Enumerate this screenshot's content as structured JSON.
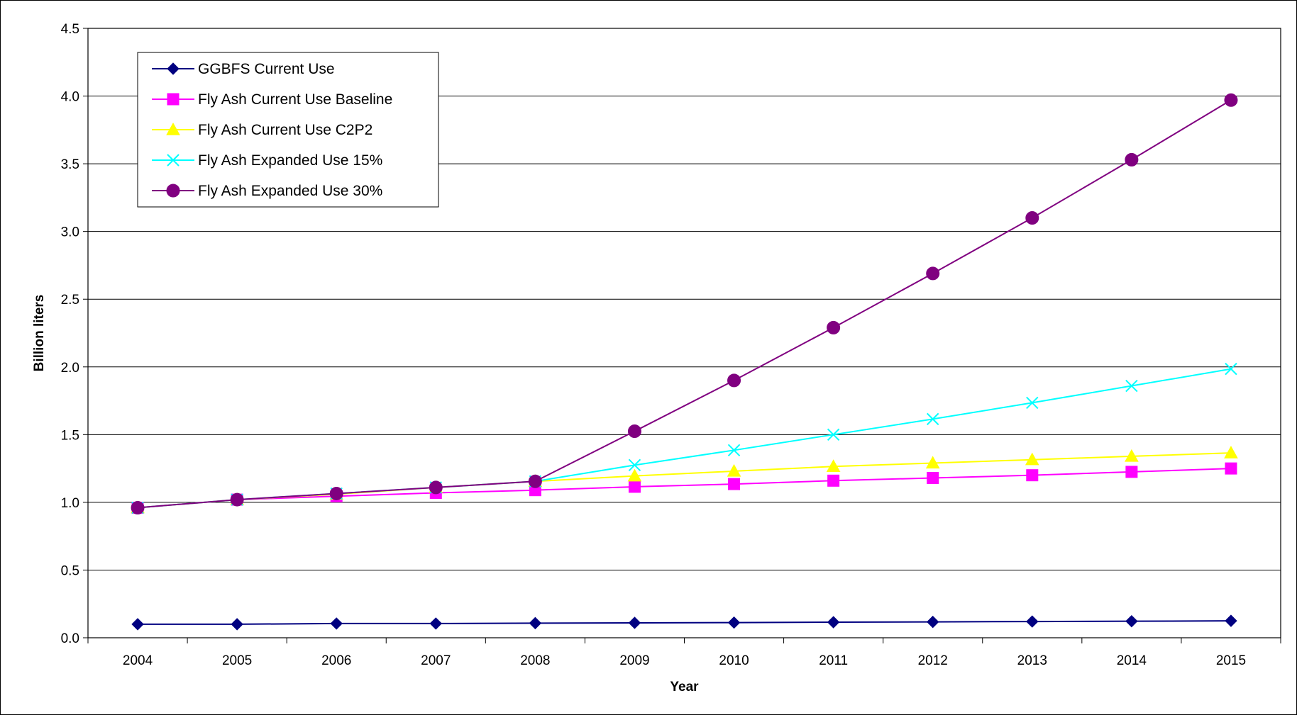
{
  "chart_data": {
    "type": "line",
    "title": "",
    "xlabel": "Year",
    "ylabel": "Billion liters",
    "categories": [
      "2004",
      "2005",
      "2006",
      "2007",
      "2008",
      "2009",
      "2010",
      "2011",
      "2012",
      "2013",
      "2014",
      "2015"
    ],
    "ylim": [
      0,
      4.5
    ],
    "yticks": [
      "0.0",
      "0.5",
      "1.0",
      "1.5",
      "2.0",
      "2.5",
      "3.0",
      "3.5",
      "4.0",
      "4.5"
    ],
    "grid": true,
    "legend_position": "top-left",
    "series": [
      {
        "name": "GGBFS Current Use",
        "color": "#000080",
        "marker": "diamond",
        "values": [
          0.1,
          0.1,
          0.105,
          0.105,
          0.108,
          0.11,
          0.112,
          0.115,
          0.117,
          0.12,
          0.122,
          0.125
        ]
      },
      {
        "name": "Fly Ash Current Use Baseline",
        "color": "#FF00FF",
        "marker": "square",
        "values": [
          0.96,
          1.02,
          1.045,
          1.07,
          1.09,
          1.115,
          1.135,
          1.16,
          1.18,
          1.2,
          1.225,
          1.25
        ]
      },
      {
        "name": "Fly Ash Current Use C2P2",
        "color": "#FFFF00",
        "marker": "triangle",
        "values": [
          0.96,
          1.02,
          1.06,
          1.11,
          1.155,
          1.195,
          1.23,
          1.265,
          1.29,
          1.315,
          1.34,
          1.365
        ]
      },
      {
        "name": "Fly Ash Expanded Use 15%",
        "color": "#00FFFF",
        "marker": "x",
        "values": [
          0.96,
          1.02,
          1.065,
          1.11,
          1.155,
          1.275,
          1.385,
          1.5,
          1.615,
          1.735,
          1.86,
          1.985
        ]
      },
      {
        "name": "Fly Ash Expanded Use 30%",
        "color": "#800080",
        "marker": "circle",
        "values": [
          0.96,
          1.02,
          1.065,
          1.11,
          1.155,
          1.525,
          1.9,
          2.29,
          2.69,
          3.1,
          3.53,
          3.97
        ]
      }
    ]
  }
}
